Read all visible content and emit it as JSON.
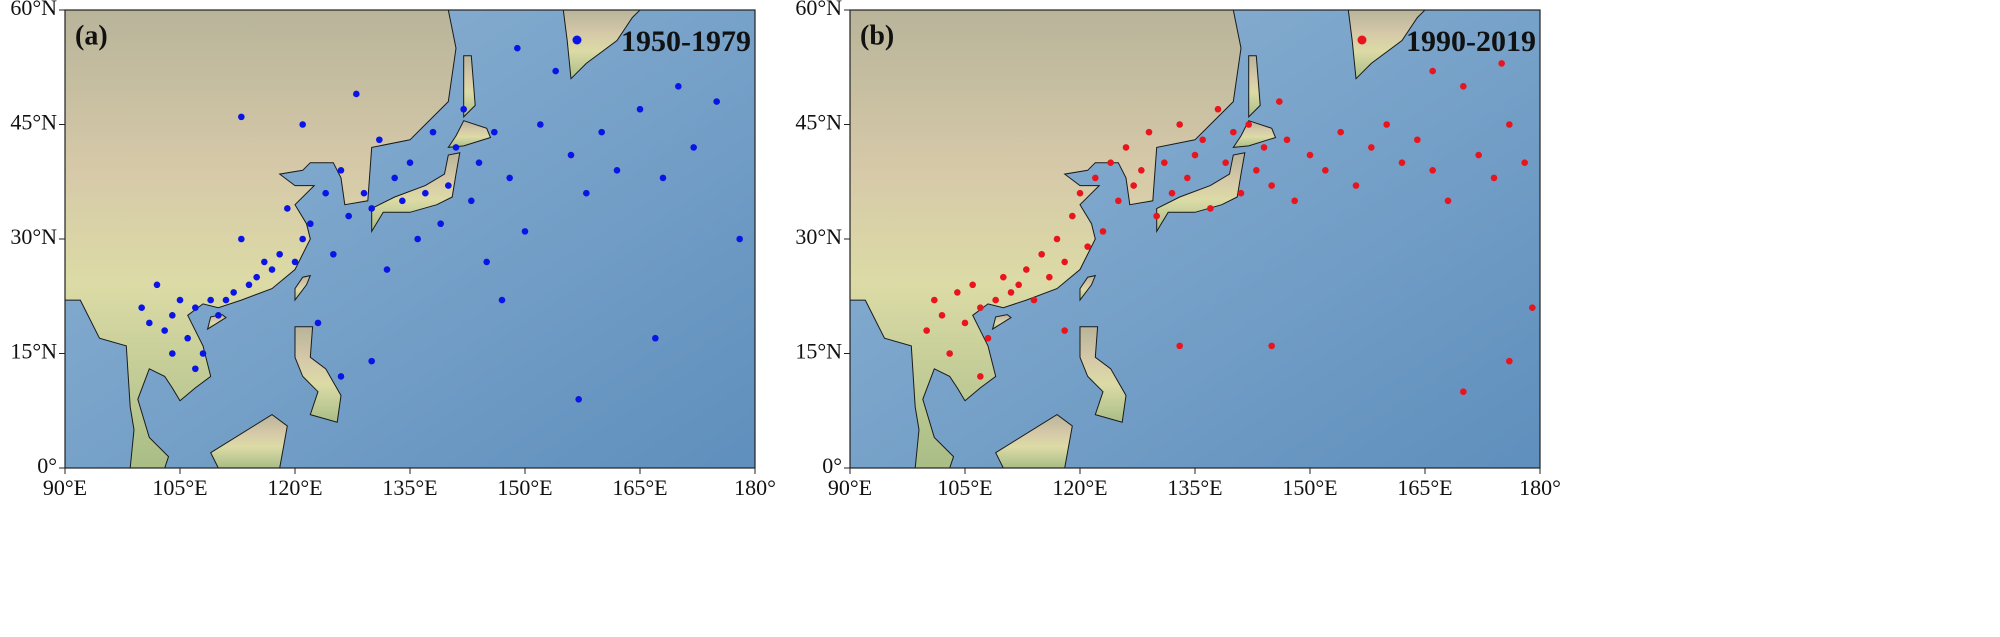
{
  "chart_data": [
    {
      "type": "scatter",
      "panel_label": "(a)",
      "legend": "upper right",
      "xlim": [
        90,
        180
      ],
      "ylim": [
        0,
        60
      ],
      "xticks": [
        {
          "value": 90,
          "label": "90°E"
        },
        {
          "value": 105,
          "label": "105°E"
        },
        {
          "value": 120,
          "label": "120°E"
        },
        {
          "value": 135,
          "label": "135°E"
        },
        {
          "value": 150,
          "label": "150°E"
        },
        {
          "value": 165,
          "label": "165°E"
        },
        {
          "value": 180,
          "label": "180°"
        }
      ],
      "yticks": [
        {
          "value": 0,
          "label": "0°"
        },
        {
          "value": 15,
          "label": "15°N"
        },
        {
          "value": 30,
          "label": "30°N"
        },
        {
          "value": 45,
          "label": "45°N"
        },
        {
          "value": 60,
          "label": "60°N"
        }
      ],
      "series": [
        {
          "name": "1950-1979",
          "color": "#0a14e6",
          "x": [
            100,
            101,
            102,
            103,
            104,
            105,
            106,
            107,
            108,
            109,
            110,
            111,
            112,
            113,
            114,
            115,
            116,
            117,
            118,
            119,
            120,
            121,
            122,
            123,
            124,
            125,
            126,
            127,
            128,
            129,
            130,
            131,
            132,
            133,
            134,
            135,
            136,
            137,
            138,
            139,
            140,
            141,
            142,
            143,
            144,
            145,
            146,
            147,
            148,
            150,
            152,
            154,
            156,
            158,
            160,
            162,
            165,
            168,
            170,
            172,
            175,
            178,
            113,
            121,
            104,
            107,
            126,
            130,
            157,
            167,
            149
          ],
          "values": [
            21,
            19,
            24,
            18,
            20,
            22,
            17,
            21,
            15,
            22,
            20,
            22,
            23,
            30,
            24,
            25,
            27,
            26,
            28,
            34,
            27,
            30,
            32,
            19,
            36,
            28,
            39,
            33,
            49,
            36,
            34,
            43,
            26,
            38,
            35,
            40,
            30,
            36,
            44,
            32,
            37,
            42,
            47,
            35,
            40,
            27,
            44,
            22,
            38,
            31,
            45,
            52,
            41,
            36,
            44,
            39,
            47,
            38,
            50,
            42,
            48,
            30,
            46,
            45,
            15,
            13,
            12,
            14,
            9,
            17,
            55
          ]
        }
      ]
    },
    {
      "type": "scatter",
      "panel_label": "(b)",
      "legend": "upper right",
      "xlim": [
        90,
        180
      ],
      "ylim": [
        0,
        60
      ],
      "xticks": [
        {
          "value": 90,
          "label": "90°E"
        },
        {
          "value": 105,
          "label": "105°E"
        },
        {
          "value": 120,
          "label": "120°E"
        },
        {
          "value": 135,
          "label": "135°E"
        },
        {
          "value": 150,
          "label": "150°E"
        },
        {
          "value": 165,
          "label": "165°E"
        },
        {
          "value": 180,
          "label": "180°"
        }
      ],
      "yticks": [
        {
          "value": 0,
          "label": "0°"
        },
        {
          "value": 15,
          "label": "15°N"
        },
        {
          "value": 30,
          "label": "30°N"
        },
        {
          "value": 45,
          "label": "45°N"
        },
        {
          "value": 60,
          "label": "60°N"
        }
      ],
      "series": [
        {
          "name": "1990-2019",
          "color": "#e8141e",
          "x": [
            100,
            101,
            102,
            103,
            104,
            105,
            106,
            107,
            108,
            109,
            110,
            111,
            112,
            113,
            114,
            115,
            116,
            117,
            118,
            119,
            120,
            121,
            122,
            123,
            124,
            125,
            126,
            127,
            128,
            129,
            130,
            131,
            132,
            133,
            134,
            135,
            136,
            137,
            138,
            139,
            140,
            141,
            142,
            143,
            144,
            145,
            146,
            147,
            148,
            150,
            152,
            154,
            156,
            158,
            160,
            162,
            164,
            166,
            168,
            170,
            172,
            174,
            176,
            178,
            179,
            170,
            176,
            145,
            133,
            107,
            118,
            166,
            175
          ],
          "values": [
            18,
            22,
            20,
            15,
            23,
            19,
            24,
            21,
            17,
            22,
            25,
            23,
            24,
            26,
            22,
            28,
            25,
            30,
            27,
            33,
            36,
            29,
            38,
            31,
            40,
            35,
            42,
            37,
            39,
            44,
            33,
            40,
            36,
            45,
            38,
            41,
            43,
            34,
            47,
            40,
            44,
            36,
            45,
            39,
            42,
            37,
            48,
            43,
            35,
            41,
            39,
            44,
            37,
            42,
            45,
            40,
            43,
            39,
            35,
            50,
            41,
            38,
            45,
            40,
            21,
            10,
            14,
            16,
            16,
            12,
            18,
            52,
            53
          ]
        }
      ]
    }
  ]
}
